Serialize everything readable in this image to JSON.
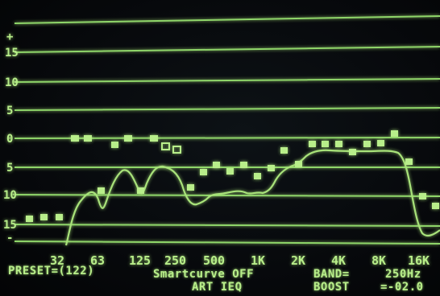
{
  "y_axis": {
    "labels": [
      "+",
      "15",
      "10",
      "5",
      "0",
      "5",
      "10",
      "15",
      "-"
    ]
  },
  "x_axis": {
    "labels": [
      "32",
      "63",
      "125",
      "250",
      "500",
      "1K",
      "2K",
      "4K",
      "8K",
      "16K"
    ]
  },
  "status": {
    "preset": "PRESET=(122)",
    "smartcurve": "Smartcurve OFF",
    "band": "BAND=",
    "band_value": "250Hz",
    "title": "ART IEQ",
    "boost": "BOOST",
    "boost_value": "=-02.0"
  },
  "colors": {
    "phosphor": "#b8ee8a",
    "grid": "#8fd66a",
    "background": "#07090c"
  }
}
